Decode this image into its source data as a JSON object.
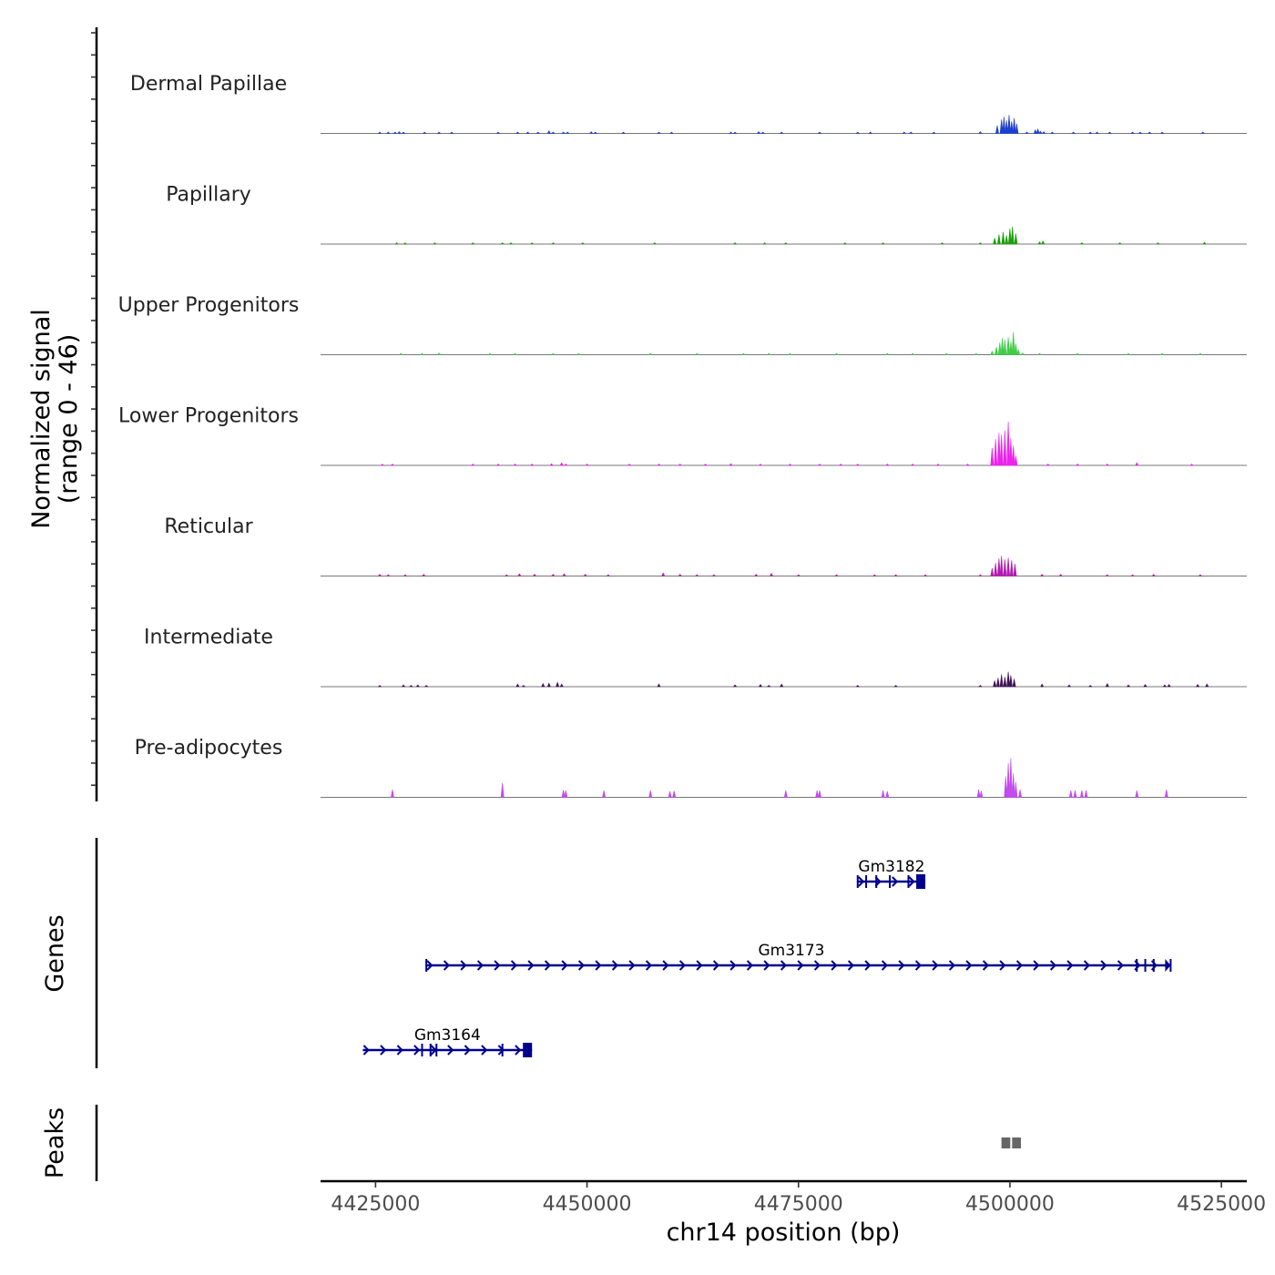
{
  "chart_data": {
    "type": "area",
    "title": "",
    "y_axis_title_line1": "Normalized signal",
    "y_axis_title_line2": "(range 0 - 46)",
    "ylim": [
      0,
      46
    ],
    "xlabel": "chr14 position (bp)",
    "xlim": [
      4418500,
      4528000
    ],
    "x_ticks": [
      4425000,
      4450000,
      4475000,
      4500000,
      4525000
    ],
    "x_tick_labels": [
      "4425000",
      "4450000",
      "4475000",
      "4500000",
      "4525000"
    ],
    "tracks": [
      {
        "name": "Dermal Papillae",
        "color": "#1c3fd0",
        "peaks": [
          [
            4425500,
            2
          ],
          [
            4426500,
            2
          ],
          [
            4427300,
            3
          ],
          [
            4427800,
            4
          ],
          [
            4428300,
            3
          ],
          [
            4430800,
            2
          ],
          [
            4432500,
            3
          ],
          [
            4434000,
            2
          ],
          [
            4439500,
            3
          ],
          [
            4441800,
            2
          ],
          [
            4443000,
            3
          ],
          [
            4444200,
            2
          ],
          [
            4445500,
            6
          ],
          [
            4446000,
            3
          ],
          [
            4447200,
            3
          ],
          [
            4447700,
            2
          ],
          [
            4450500,
            4
          ],
          [
            4451000,
            3
          ],
          [
            4454300,
            2
          ],
          [
            4458500,
            2
          ],
          [
            4460000,
            2
          ],
          [
            4467000,
            3
          ],
          [
            4467500,
            2
          ],
          [
            4470300,
            4
          ],
          [
            4470800,
            3
          ],
          [
            4473000,
            2
          ],
          [
            4477500,
            2
          ],
          [
            4482000,
            2
          ],
          [
            4483500,
            2
          ],
          [
            4487500,
            3
          ],
          [
            4488300,
            2
          ],
          [
            4491000,
            2
          ],
          [
            4496500,
            4
          ],
          [
            4498500,
            18
          ],
          [
            4499000,
            32
          ],
          [
            4499300,
            38
          ],
          [
            4499600,
            30
          ],
          [
            4499900,
            42
          ],
          [
            4500200,
            28
          ],
          [
            4500500,
            35
          ],
          [
            4500800,
            22
          ],
          [
            4502000,
            3
          ],
          [
            4503000,
            8
          ],
          [
            4503300,
            10
          ],
          [
            4503600,
            5
          ],
          [
            4504000,
            4
          ],
          [
            4505000,
            2
          ],
          [
            4507500,
            2
          ],
          [
            4509500,
            3
          ],
          [
            4510300,
            2
          ],
          [
            4511800,
            3
          ],
          [
            4514500,
            2
          ],
          [
            4515400,
            2
          ],
          [
            4516500,
            3
          ],
          [
            4518000,
            2
          ],
          [
            4522800,
            2
          ]
        ]
      },
      {
        "name": "Papillary",
        "color": "#1c9e0a",
        "peaks": [
          [
            4427500,
            1
          ],
          [
            4428500,
            1
          ],
          [
            4432000,
            2
          ],
          [
            4436500,
            1
          ],
          [
            4440000,
            3
          ],
          [
            4441000,
            2
          ],
          [
            4443500,
            2
          ],
          [
            4446000,
            2
          ],
          [
            4449500,
            1
          ],
          [
            4458000,
            1
          ],
          [
            4467500,
            2
          ],
          [
            4471000,
            3
          ],
          [
            4473500,
            2
          ],
          [
            4480500,
            1
          ],
          [
            4485000,
            2
          ],
          [
            4492000,
            1
          ],
          [
            4496500,
            2
          ],
          [
            4498200,
            14
          ],
          [
            4498700,
            22
          ],
          [
            4499200,
            28
          ],
          [
            4499600,
            20
          ],
          [
            4500000,
            36
          ],
          [
            4500300,
            40
          ],
          [
            4500700,
            24
          ],
          [
            4503500,
            5
          ],
          [
            4503900,
            7
          ],
          [
            4508500,
            2
          ],
          [
            4513000,
            2
          ],
          [
            4517500,
            2
          ],
          [
            4523000,
            4
          ]
        ]
      },
      {
        "name": "Upper Progenitors",
        "color": "#40cc4a",
        "peaks": [
          [
            4428000,
            2
          ],
          [
            4430500,
            1
          ],
          [
            4432500,
            4
          ],
          [
            4438500,
            1
          ],
          [
            4441500,
            3
          ],
          [
            4446000,
            3
          ],
          [
            4449000,
            1
          ],
          [
            4457500,
            2
          ],
          [
            4463000,
            1
          ],
          [
            4468500,
            2
          ],
          [
            4471500,
            2
          ],
          [
            4474000,
            1
          ],
          [
            4479500,
            1
          ],
          [
            4485500,
            2
          ],
          [
            4488500,
            1
          ],
          [
            4492500,
            1
          ],
          [
            4496000,
            1
          ],
          [
            4497900,
            8
          ],
          [
            4498400,
            18
          ],
          [
            4498800,
            28
          ],
          [
            4499100,
            38
          ],
          [
            4499400,
            34
          ],
          [
            4499800,
            40
          ],
          [
            4500100,
            30
          ],
          [
            4500400,
            52
          ],
          [
            4500700,
            26
          ],
          [
            4501000,
            12
          ],
          [
            4501500,
            4
          ],
          [
            4503500,
            2
          ],
          [
            4508000,
            1
          ],
          [
            4514000,
            1
          ],
          [
            4518000,
            1
          ],
          [
            4522500,
            1
          ]
        ]
      },
      {
        "name": "Lower Progenitors",
        "color": "#ee22ee",
        "peaks": [
          [
            4425800,
            2
          ],
          [
            4427000,
            2
          ],
          [
            4436500,
            1
          ],
          [
            4439500,
            2
          ],
          [
            4441500,
            3
          ],
          [
            4443500,
            2
          ],
          [
            4445800,
            4
          ],
          [
            4447000,
            6
          ],
          [
            4447500,
            3
          ],
          [
            4450000,
            2
          ],
          [
            4455000,
            3
          ],
          [
            4458500,
            2
          ],
          [
            4461000,
            3
          ],
          [
            4464000,
            2
          ],
          [
            4467000,
            4
          ],
          [
            4470500,
            2
          ],
          [
            4474000,
            2
          ],
          [
            4477500,
            2
          ],
          [
            4480000,
            2
          ],
          [
            4482000,
            3
          ],
          [
            4485500,
            2
          ],
          [
            4488500,
            2
          ],
          [
            4491500,
            2
          ],
          [
            4495000,
            2
          ],
          [
            4497900,
            40
          ],
          [
            4498300,
            60
          ],
          [
            4498700,
            74
          ],
          [
            4499000,
            70
          ],
          [
            4499400,
            80
          ],
          [
            4499800,
            100
          ],
          [
            4500100,
            62
          ],
          [
            4500400,
            45
          ],
          [
            4500700,
            22
          ],
          [
            4504500,
            3
          ],
          [
            4508000,
            2
          ],
          [
            4511500,
            3
          ],
          [
            4515000,
            6
          ],
          [
            4521500,
            2
          ]
        ]
      },
      {
        "name": "Reticular",
        "color": "#b519b0",
        "peaks": [
          [
            4425500,
            4
          ],
          [
            4426500,
            3
          ],
          [
            4428500,
            2
          ],
          [
            4430700,
            4
          ],
          [
            4440500,
            2
          ],
          [
            4442000,
            5
          ],
          [
            4443800,
            4
          ],
          [
            4446000,
            4
          ],
          [
            4447300,
            5
          ],
          [
            4449800,
            4
          ],
          [
            4452500,
            3
          ],
          [
            4459000,
            7
          ],
          [
            4461000,
            4
          ],
          [
            4463000,
            3
          ],
          [
            4465000,
            3
          ],
          [
            4470000,
            4
          ],
          [
            4471800,
            6
          ],
          [
            4475000,
            3
          ],
          [
            4479500,
            3
          ],
          [
            4484000,
            2
          ],
          [
            4486500,
            3
          ],
          [
            4490000,
            3
          ],
          [
            4496500,
            2
          ],
          [
            4497900,
            18
          ],
          [
            4498300,
            30
          ],
          [
            4498700,
            40
          ],
          [
            4499000,
            46
          ],
          [
            4499400,
            38
          ],
          [
            4499800,
            42
          ],
          [
            4500200,
            36
          ],
          [
            4500600,
            28
          ],
          [
            4503800,
            4
          ],
          [
            4506000,
            4
          ],
          [
            4511500,
            3
          ],
          [
            4514500,
            3
          ],
          [
            4517000,
            4
          ],
          [
            4522500,
            2
          ]
        ]
      },
      {
        "name": "Intermediate",
        "color": "#3e1456",
        "peaks": [
          [
            4425500,
            3
          ],
          [
            4428300,
            4
          ],
          [
            4429200,
            3
          ],
          [
            4430000,
            4
          ],
          [
            4431000,
            3
          ],
          [
            4441800,
            6
          ],
          [
            4442500,
            3
          ],
          [
            4444800,
            7
          ],
          [
            4445500,
            8
          ],
          [
            4446500,
            10
          ],
          [
            4447000,
            6
          ],
          [
            4458500,
            6
          ],
          [
            4467500,
            4
          ],
          [
            4470500,
            5
          ],
          [
            4471500,
            3
          ],
          [
            4473000,
            6
          ],
          [
            4482000,
            2
          ],
          [
            4486500,
            3
          ],
          [
            4496500,
            3
          ],
          [
            4498200,
            14
          ],
          [
            4498600,
            20
          ],
          [
            4499000,
            28
          ],
          [
            4499400,
            22
          ],
          [
            4499800,
            34
          ],
          [
            4500100,
            26
          ],
          [
            4500500,
            18
          ],
          [
            4503800,
            6
          ],
          [
            4507000,
            4
          ],
          [
            4509500,
            3
          ],
          [
            4511500,
            7
          ],
          [
            4514000,
            4
          ],
          [
            4516000,
            5
          ],
          [
            4518300,
            4
          ],
          [
            4518800,
            5
          ],
          [
            4522200,
            5
          ],
          [
            4523300,
            6
          ]
        ]
      },
      {
        "name": "Pre-adipocytes",
        "color": "#c34bf0",
        "peaks": [
          [
            4427000,
            18
          ],
          [
            4440000,
            33
          ],
          [
            4447200,
            17
          ],
          [
            4447500,
            16
          ],
          [
            4452000,
            16
          ],
          [
            4457500,
            16
          ],
          [
            4459800,
            14
          ],
          [
            4460300,
            15
          ],
          [
            4473500,
            16
          ],
          [
            4477200,
            16
          ],
          [
            4477500,
            16
          ],
          [
            4485000,
            16
          ],
          [
            4485500,
            14
          ],
          [
            4496300,
            18
          ],
          [
            4496600,
            15
          ],
          [
            4499500,
            48
          ],
          [
            4499800,
            78
          ],
          [
            4500100,
            90
          ],
          [
            4500400,
            55
          ],
          [
            4500700,
            35
          ],
          [
            4501200,
            18
          ],
          [
            4507200,
            16
          ],
          [
            4507700,
            16
          ],
          [
            4508500,
            16
          ],
          [
            4509000,
            16
          ],
          [
            4515000,
            16
          ],
          [
            4518500,
            18
          ]
        ]
      }
    ],
    "genes_track_title": "Genes",
    "genes": [
      {
        "name": "Gm3182",
        "start": 4482000,
        "end": 4490000,
        "strand": "+",
        "row": 0,
        "exons": [
          4482000,
          4483000,
          4484200,
          4485800,
          4488000
        ]
      },
      {
        "name": "Gm3173",
        "start": 4431000,
        "end": 4519000,
        "strand": "+",
        "row": 1,
        "exons": [
          4431000,
          4515000,
          4516000,
          4517000,
          4519000
        ]
      },
      {
        "name": "Gm3164",
        "start": 4423500,
        "end": 4443500,
        "strand": "+",
        "row": 2,
        "exons": [
          4430500,
          4431500,
          4432200,
          4440000
        ]
      }
    ],
    "peaks_track_title": "Peaks",
    "called_peaks": [
      [
        4499000,
        4501300
      ]
    ]
  }
}
